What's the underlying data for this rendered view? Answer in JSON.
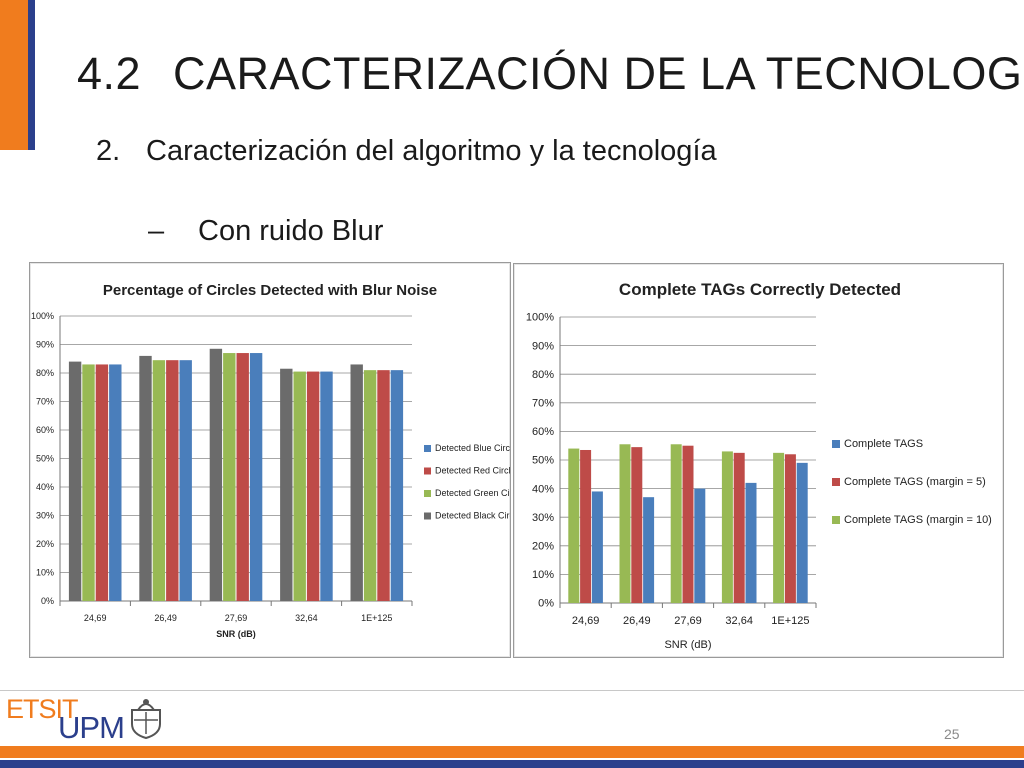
{
  "slide": {
    "title_number": "4.2",
    "title_text": "CARACTERIZACIÓN DE LA TECNOLOGÍA",
    "subtitle_number": "2.",
    "subtitle_text": "Caracterización del algoritmo y la tecnología",
    "bullet_dash": "–",
    "bullet_text": "Con ruido Blur",
    "page_number": "25",
    "logo_text_top": "ETSIT",
    "logo_text_bottom": "UPM"
  },
  "colors": {
    "accent_orange": "#f07c1e",
    "accent_navy": "#2b3f8c",
    "blue": "#4a7ebb",
    "red": "#be4b48",
    "green": "#98b954",
    "gray": "#6b6b6b"
  },
  "chart_data": [
    {
      "type": "bar",
      "title": "Percentage of  Circles Detected with Blur Noise",
      "xlabel": "SNR (dB)",
      "ylabel": "",
      "categories": [
        "24,69",
        "26,49",
        "27,69",
        "32,64",
        "1E+125"
      ],
      "y_ticks": [
        "0%",
        "10%",
        "20%",
        "30%",
        "40%",
        "50%",
        "60%",
        "70%",
        "80%",
        "90%",
        "100%"
      ],
      "ylim": [
        0,
        100
      ],
      "grid": true,
      "legend_position": "right",
      "series": [
        {
          "name": "Detected Black Circles",
          "color": "#6b6b6b",
          "values": [
            84,
            86,
            88.5,
            81.5,
            83
          ]
        },
        {
          "name": "Detected Green Circles",
          "color": "#98b954",
          "values": [
            83,
            84.5,
            87,
            80.5,
            81
          ]
        },
        {
          "name": "Detected Red Circles",
          "color": "#be4b48",
          "values": [
            83,
            84.5,
            87,
            80.5,
            81
          ]
        },
        {
          "name": "Detected Blue Circles",
          "color": "#4a7ebb",
          "values": [
            83,
            84.5,
            87,
            80.5,
            81
          ]
        }
      ],
      "legend_order": [
        "Detected Blue Circles",
        "Detected Red Circles",
        "Detected Green Circles",
        "Detected Black Circles"
      ]
    },
    {
      "type": "bar",
      "title": "Complete TAGs Correctly Detected",
      "xlabel": "SNR (dB)",
      "ylabel": "",
      "categories": [
        "24,69",
        "26,49",
        "27,69",
        "32,64",
        "1E+125"
      ],
      "y_ticks": [
        "0%",
        "10%",
        "20%",
        "30%",
        "40%",
        "50%",
        "60%",
        "70%",
        "80%",
        "90%",
        "100%"
      ],
      "ylim": [
        0,
        100
      ],
      "grid": true,
      "legend_position": "right",
      "series": [
        {
          "name": "Complete TAGS (margin = 10)",
          "color": "#98b954",
          "values": [
            54,
            55.5,
            55.5,
            53,
            52.5
          ]
        },
        {
          "name": "Complete TAGS (margin = 5)",
          "color": "#be4b48",
          "values": [
            53.5,
            54.5,
            55,
            52.5,
            52
          ]
        },
        {
          "name": "Complete TAGS",
          "color": "#4a7ebb",
          "values": [
            39,
            37,
            40,
            42,
            49
          ]
        }
      ],
      "legend_order": [
        "Complete TAGS",
        "Complete TAGS (margin = 5)",
        "Complete TAGS (margin = 10)"
      ]
    }
  ]
}
